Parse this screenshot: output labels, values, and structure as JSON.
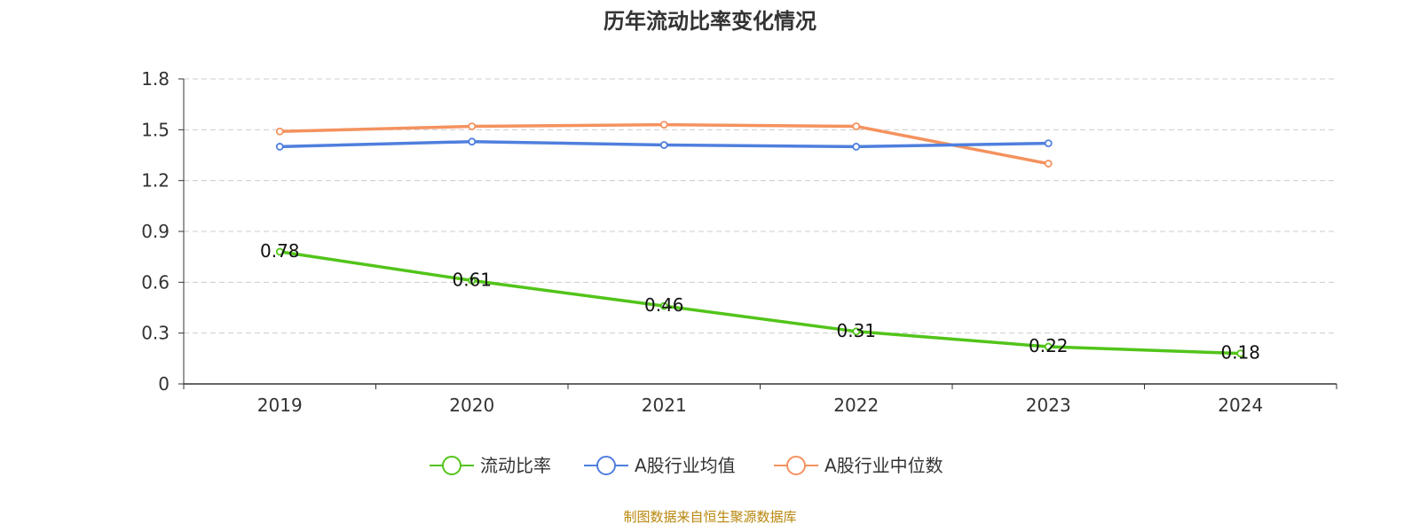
{
  "chart_data": {
    "type": "line",
    "title": "历年流动比率变化情况",
    "categories": [
      "2019",
      "2020",
      "2021",
      "2022",
      "2023",
      "2024"
    ],
    "ylim": [
      0,
      1.8
    ],
    "yticks": [
      "0",
      "0.3",
      "0.6",
      "0.9",
      "1.2",
      "1.5",
      "1.8"
    ],
    "grid": true,
    "legend_position": "bottom-center",
    "series": [
      {
        "name": "流动比率",
        "color": "#52c41a",
        "values": [
          0.78,
          0.61,
          0.46,
          0.31,
          0.22,
          0.18
        ],
        "labels": [
          "0.78",
          "0.61",
          "0.46",
          "0.31",
          "0.22",
          "0.18"
        ]
      },
      {
        "name": "A股行业均值",
        "color": "#4f7fde",
        "values": [
          1.4,
          1.43,
          1.41,
          1.4,
          1.42,
          null
        ]
      },
      {
        "name": "A股行业中位数",
        "color": "#f4925f",
        "values": [
          1.49,
          1.52,
          1.53,
          1.52,
          1.3,
          null
        ]
      }
    ]
  },
  "source_text": "制图数据来自恒生聚源数据库"
}
